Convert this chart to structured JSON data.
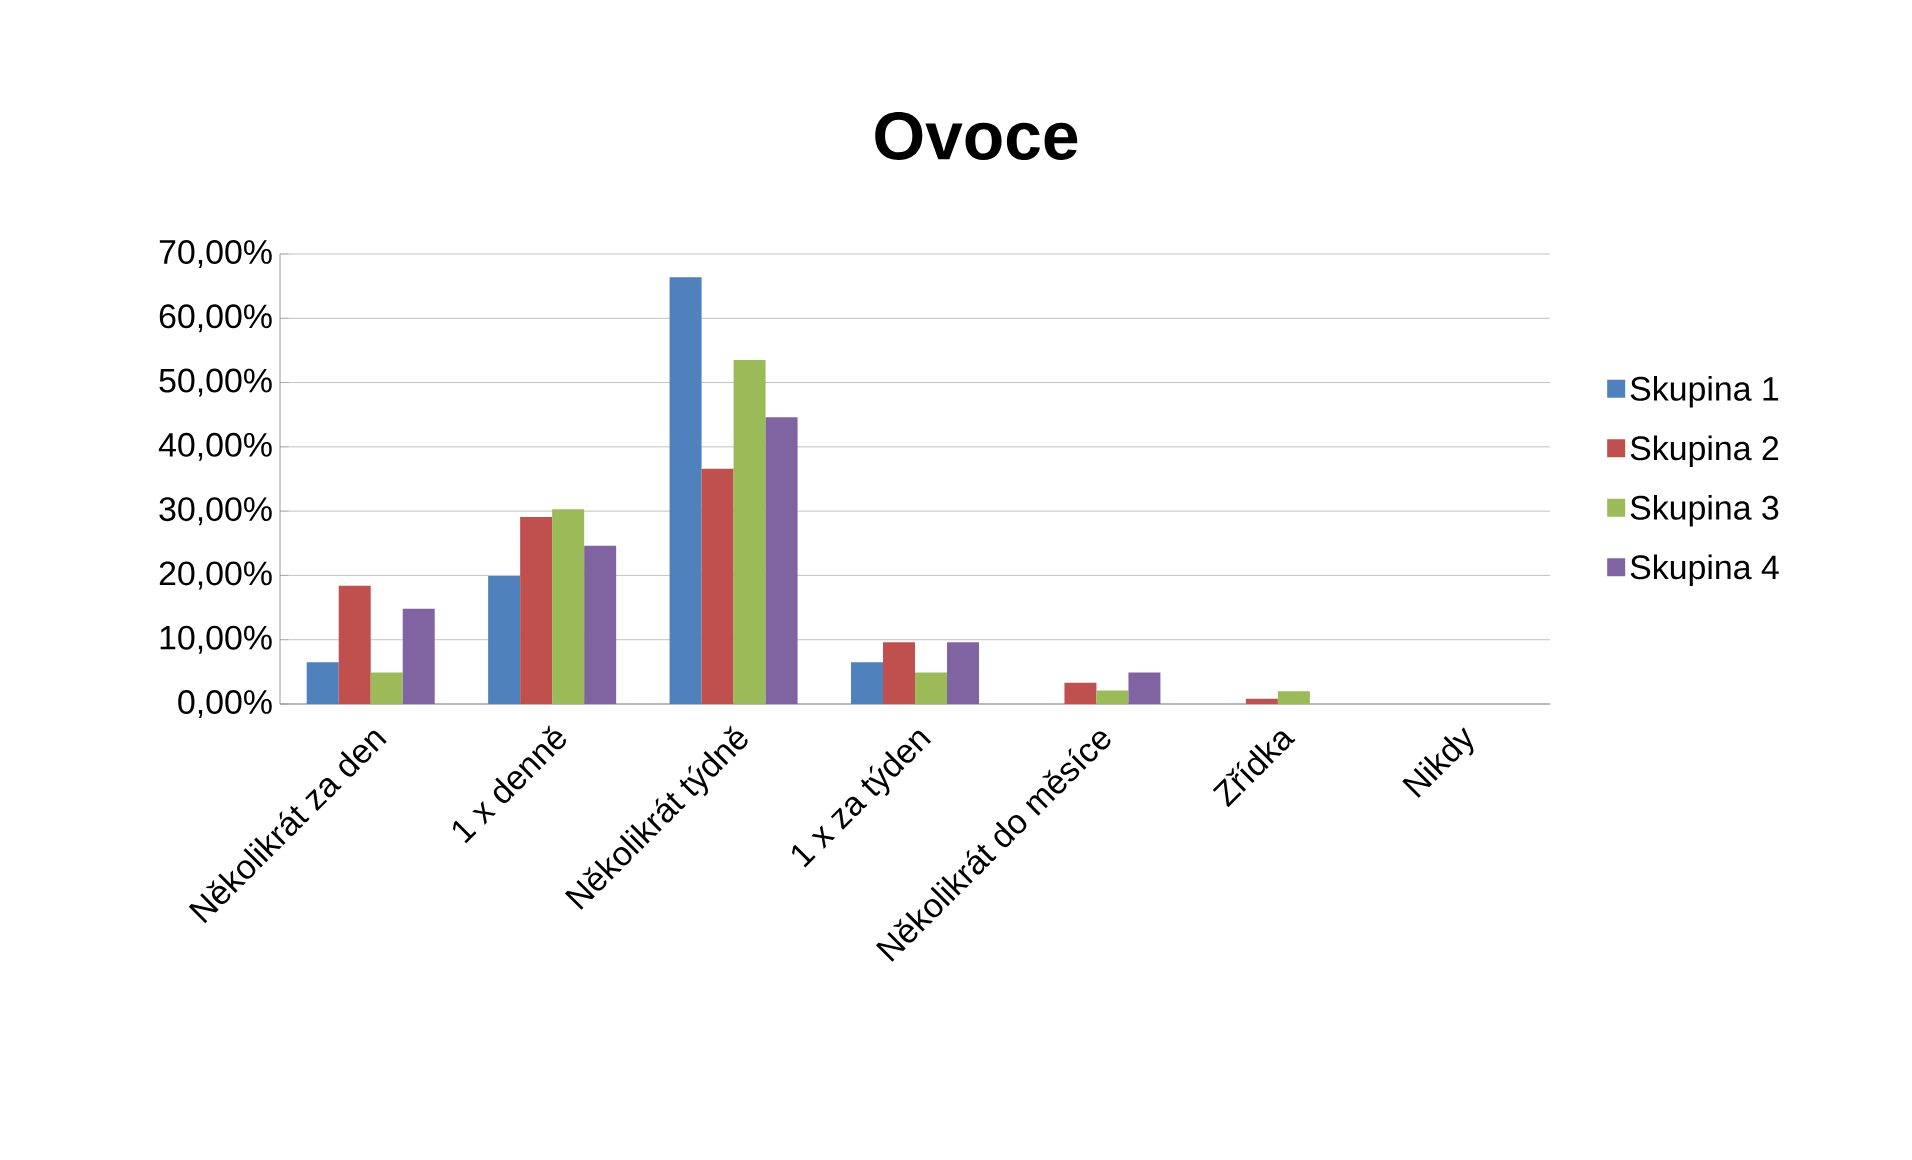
{
  "chart_data": {
    "type": "bar",
    "title": "Ovoce",
    "categories": [
      "Několikrát za den",
      "1 x denně",
      "Několikrát týdně",
      "1 x za týden",
      "Několikrát do měsíce",
      "Zřídka",
      "Nikdy"
    ],
    "series": [
      {
        "name": "Skupina 1",
        "color": "#4f81bd",
        "values": [
          6.5,
          19.9,
          66.4,
          6.5,
          0,
          0,
          0
        ]
      },
      {
        "name": "Skupina 2",
        "color": "#c0504d",
        "values": [
          18.4,
          29.1,
          36.6,
          9.6,
          3.3,
          0.8,
          0
        ]
      },
      {
        "name": "Skupina 3",
        "color": "#9bbb59",
        "values": [
          4.9,
          30.3,
          53.5,
          4.9,
          2.1,
          2.0,
          0
        ]
      },
      {
        "name": "Skupina 4",
        "color": "#8064a2",
        "values": [
          14.8,
          24.6,
          44.6,
          9.6,
          4.9,
          0,
          0
        ]
      }
    ],
    "ylim": [
      0,
      70
    ],
    "yticks": [
      {
        "value": 0,
        "label": "0,00%"
      },
      {
        "value": 10,
        "label": "10,00%"
      },
      {
        "value": 20,
        "label": "20,00%"
      },
      {
        "value": 30,
        "label": "30,00%"
      },
      {
        "value": 40,
        "label": "40,00%"
      },
      {
        "value": 50,
        "label": "50,00%"
      },
      {
        "value": 60,
        "label": "60,00%"
      },
      {
        "value": 70,
        "label": "70,00%"
      }
    ],
    "grid": "y",
    "legend": "right"
  }
}
